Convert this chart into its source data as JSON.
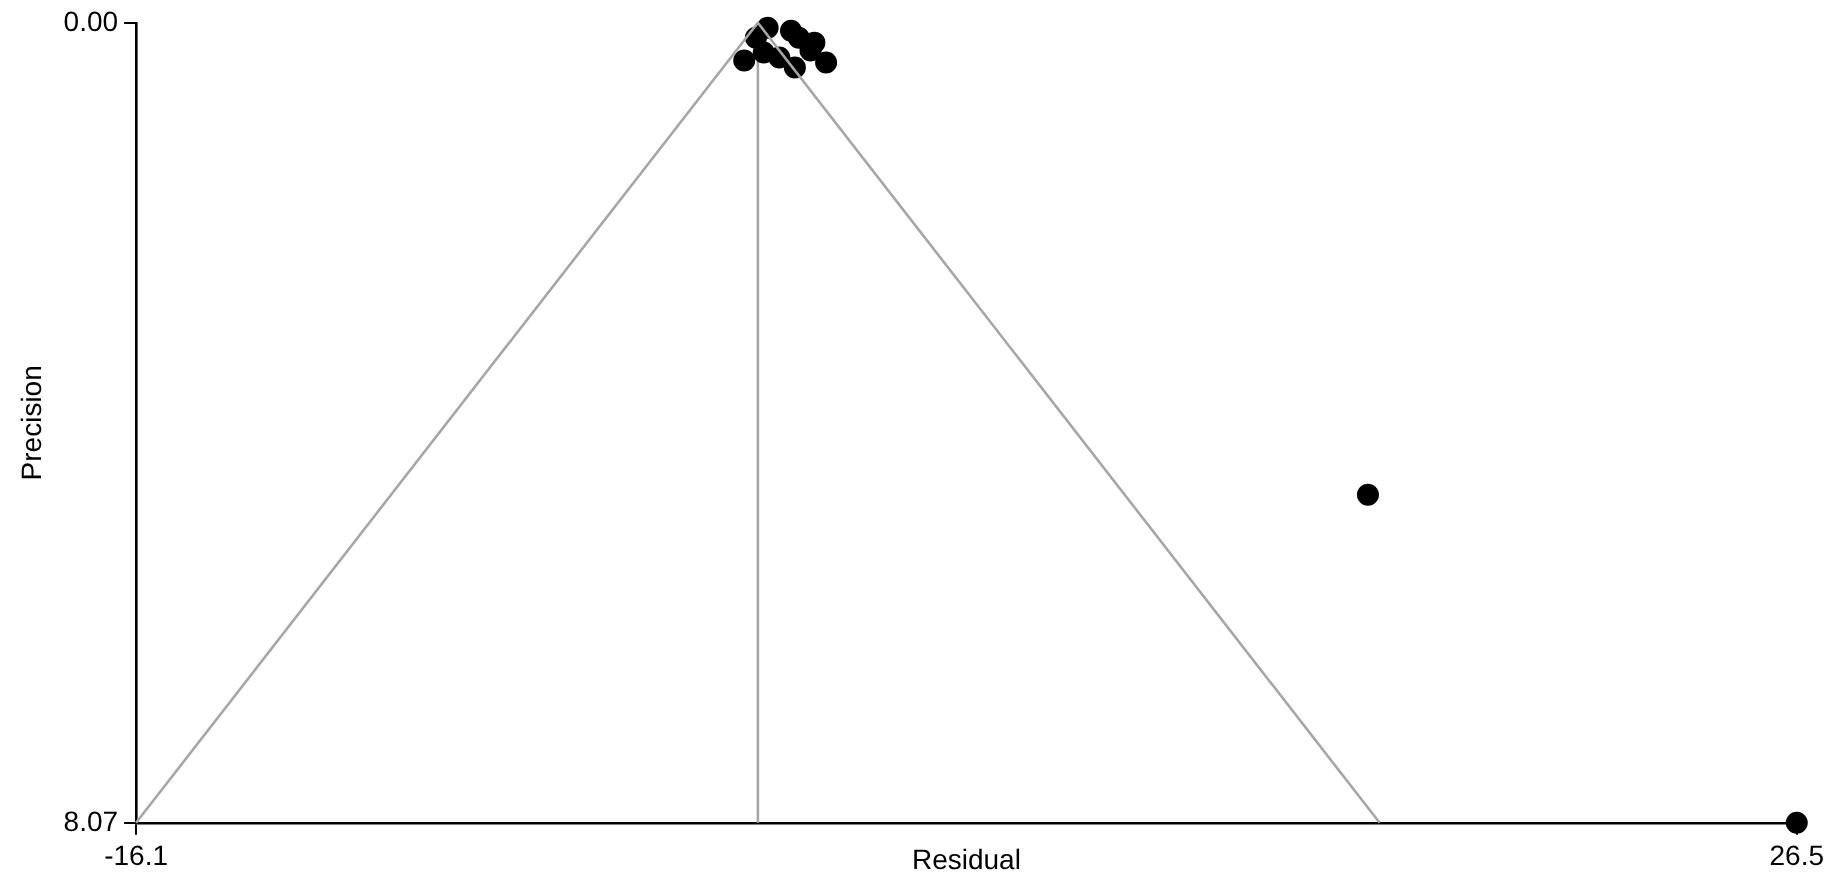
{
  "chart_data": {
    "type": "scatter",
    "xlabel": "Residual",
    "ylabel": "Precision",
    "xlim": [
      -16.1,
      26.5
    ],
    "xticks": [
      -16.1,
      26.5
    ],
    "ylim": [
      8.07,
      0
    ],
    "yticks": [
      {
        "value": 0,
        "label": "0.00"
      },
      {
        "value": 8.07,
        "label": "8.07"
      }
    ],
    "grid": false,
    "legend": false,
    "marker": "circle",
    "ref_lines": [
      {
        "axis": "x",
        "value": -0.15,
        "color": "#a6a6a6"
      }
    ],
    "series": [
      {
        "type": "line",
        "color": "#a6a6a6",
        "x": [
          -16.1,
          -0.15,
          15.8
        ],
        "values": [
          8.07,
          0,
          8.07
        ],
        "marker": "none"
      },
      {
        "color": "#000000",
        "x": [
          -0.2,
          0.1,
          0.7,
          0.9,
          1.3,
          1.6,
          -0.5,
          0.0,
          0.4,
          0.8,
          1.2,
          15.5,
          26.5
        ],
        "values": [
          0.15,
          0.05,
          0.08,
          0.15,
          0.2,
          0.4,
          0.38,
          0.3,
          0.35,
          0.45,
          0.28,
          4.76,
          8.07
        ]
      }
    ]
  }
}
